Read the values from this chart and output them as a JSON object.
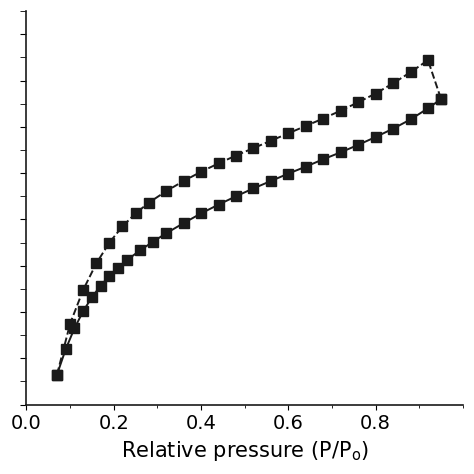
{
  "adsorption_x": [
    0.07,
    0.09,
    0.11,
    0.13,
    0.15,
    0.17,
    0.19,
    0.21,
    0.23,
    0.26,
    0.29,
    0.32,
    0.36,
    0.4,
    0.44,
    0.48,
    0.52,
    0.56,
    0.6,
    0.64,
    0.68,
    0.72,
    0.76,
    0.8,
    0.84,
    0.88,
    0.92,
    0.95
  ],
  "adsorption_y": [
    0.065,
    0.12,
    0.165,
    0.202,
    0.232,
    0.257,
    0.278,
    0.296,
    0.312,
    0.333,
    0.352,
    0.37,
    0.392,
    0.413,
    0.432,
    0.45,
    0.467,
    0.483,
    0.499,
    0.514,
    0.53,
    0.545,
    0.561,
    0.578,
    0.596,
    0.616,
    0.64,
    0.66
  ],
  "desorption_x": [
    0.07,
    0.1,
    0.13,
    0.16,
    0.19,
    0.22,
    0.25,
    0.28,
    0.32,
    0.36,
    0.4,
    0.44,
    0.48,
    0.52,
    0.56,
    0.6,
    0.64,
    0.68,
    0.72,
    0.76,
    0.8,
    0.84,
    0.88,
    0.92,
    0.95
  ],
  "desorption_y": [
    0.065,
    0.175,
    0.248,
    0.305,
    0.35,
    0.385,
    0.413,
    0.436,
    0.461,
    0.483,
    0.503,
    0.521,
    0.538,
    0.554,
    0.57,
    0.586,
    0.602,
    0.618,
    0.635,
    0.653,
    0.672,
    0.694,
    0.718,
    0.744,
    0.66
  ],
  "xlim": [
    0.0,
    1.0
  ],
  "ylim": [
    0.0,
    0.85
  ],
  "xticks": [
    0.0,
    0.2,
    0.4,
    0.6,
    0.8
  ],
  "line_color": "#1a1a1a",
  "marker": "s",
  "markersize": 7,
  "linewidth": 1.4,
  "xlabel_fontsize": 15,
  "tick_labelsize": 14
}
